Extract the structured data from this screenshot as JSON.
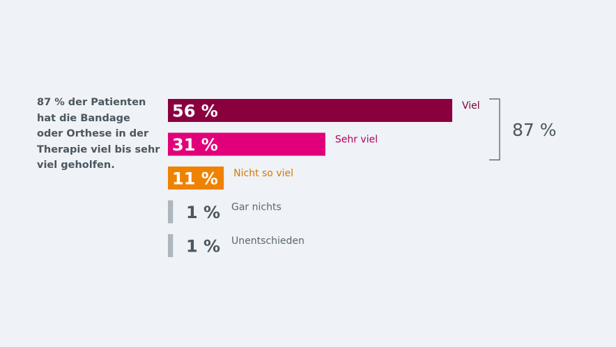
{
  "description": [
    "87 % der Patienten",
    "hat die Bandage",
    "oder Orthese in der",
    "Therapie viel bis sehr",
    "viel geholfen."
  ],
  "chart_data": {
    "type": "bar",
    "orientation": "horizontal",
    "categories": [
      "Viel",
      "Sehr viel",
      "Nicht so viel",
      "Gar nichts",
      "Unentschieden"
    ],
    "values": [
      56,
      31,
      11,
      1,
      1
    ],
    "value_labels": [
      "56 %",
      "31 %",
      "11 %",
      "1 %",
      "1 %"
    ],
    "colors": [
      "#8a003f",
      "#e2007a",
      "#ef8200",
      "#aeb7be",
      "#aeb7be"
    ],
    "label_colors": [
      "#7a0036",
      "#b0005f",
      "#d97700",
      "#5a666f",
      "#5a666f"
    ],
    "xlim": [
      0,
      56
    ],
    "bracket_total_label": "87 %",
    "bracket_covers": [
      "Viel",
      "Sehr viel"
    ]
  }
}
